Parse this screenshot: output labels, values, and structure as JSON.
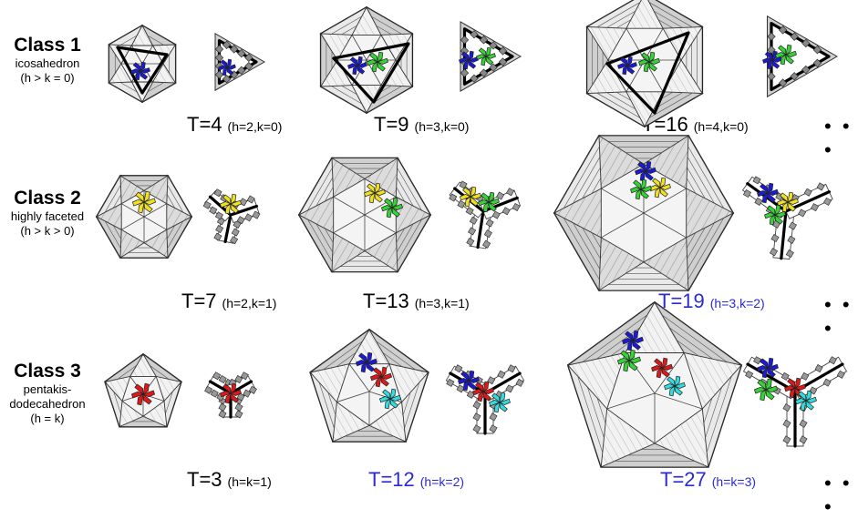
{
  "rows": [
    {
      "class_label": "Class 1",
      "description": "icosahedron",
      "condition": "(h > k = 0)"
    },
    {
      "class_label": "Class 2",
      "description": "highly faceted",
      "condition": "(h > k > 0)"
    },
    {
      "class_label": "Class 3",
      "description": "pentakis-",
      "description2": "dodecahedron",
      "condition": "(h = k)"
    }
  ],
  "labels": [
    {
      "t": "T=4",
      "hk": "(h=2,k=0)",
      "blue": false
    },
    {
      "t": "T=9",
      "hk": "(h=3,k=0)",
      "blue": false
    },
    {
      "t": "T=16",
      "hk": "(h=4,k=0)",
      "blue": false
    },
    {
      "t": "T=7",
      "hk": "(h=2,k=1)",
      "blue": false
    },
    {
      "t": "T=13",
      "hk": "(h=3,k=1)",
      "blue": false
    },
    {
      "t": "T=19",
      "hk": "(h=3,k=2)",
      "blue": true
    },
    {
      "t": "T=3",
      "hk": "(h=k=1)",
      "blue": false
    },
    {
      "t": "T=12",
      "hk": "(h=k=2)",
      "blue": true
    },
    {
      "t": "T=27",
      "hk": "(h=k=3)",
      "blue": true
    }
  ],
  "ellipsis": "• • •",
  "colors": {
    "blue": "#1a1ad8",
    "green": "#35d335",
    "yellow": "#f0e020",
    "red": "#e01818",
    "cyan": "#30dde0",
    "label_blue": "#2a2ad0",
    "facet_light": "#e4e4e4",
    "facet_dark": "#8a8a8a"
  }
}
